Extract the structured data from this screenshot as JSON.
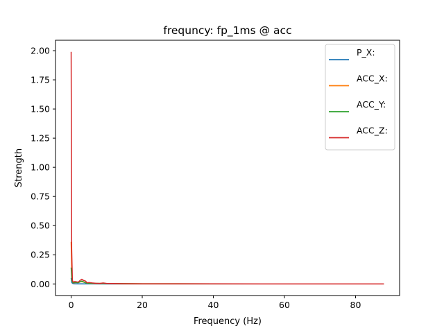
{
  "chart_data": {
    "type": "line",
    "title": "frequncy: fp_1ms @ acc",
    "xlabel": "Frequency (Hz)",
    "ylabel": "Strength",
    "xlim": [
      -4.4,
      92.4
    ],
    "ylim": [
      -0.0995,
      2.0895
    ],
    "xticks": [
      0,
      20,
      40,
      60,
      80
    ],
    "xtick_labels": [
      "0",
      "20",
      "40",
      "60",
      "80"
    ],
    "yticks": [
      0,
      0.25,
      0.5,
      0.75,
      1.0,
      1.25,
      1.5,
      1.75,
      2.0
    ],
    "ytick_labels": [
      "0.00",
      "0.25",
      "0.50",
      "0.75",
      "1.00",
      "1.25",
      "1.50",
      "1.75",
      "2.00"
    ],
    "grid": false,
    "legend_position": "top-right",
    "series": [
      {
        "name": "P_X:",
        "color": "#1f77b4",
        "x": [
          0,
          0.2,
          0.5,
          1,
          2,
          3,
          5,
          10,
          20,
          40,
          60,
          80,
          88
        ],
        "y": [
          0.05,
          0.01,
          0.003,
          0.002,
          0.001,
          0.001,
          0.001,
          0.0,
          0.0,
          0.0,
          0.0,
          0.0,
          0.0
        ]
      },
      {
        "name": "ACC_X:",
        "color": "#ff7f0e",
        "x": [
          0,
          0.2,
          0.5,
          1,
          2,
          3,
          4,
          5,
          10,
          20,
          40,
          60,
          80,
          88
        ],
        "y": [
          0.36,
          0.05,
          0.01,
          0.01,
          0.015,
          0.02,
          0.01,
          0.005,
          0.003,
          0.001,
          0.0,
          0.0,
          0.0,
          0.0
        ]
      },
      {
        "name": "ACC_Y:",
        "color": "#2ca02c",
        "x": [
          0,
          0.2,
          0.5,
          1,
          2,
          3,
          4,
          5,
          10,
          20,
          40,
          60,
          80,
          88
        ],
        "y": [
          0.14,
          0.03,
          0.01,
          0.012,
          0.01,
          0.025,
          0.01,
          0.005,
          0.003,
          0.001,
          0.0,
          0.0,
          0.0,
          0.0
        ]
      },
      {
        "name": "ACC_Z:",
        "color": "#d62728",
        "x": [
          0,
          0.15,
          0.35,
          0.6,
          1,
          1.5,
          2,
          2.5,
          3,
          3.5,
          4,
          4.5,
          5,
          6,
          7,
          8,
          9,
          10,
          15,
          20,
          40,
          60,
          80,
          88
        ],
        "y": [
          1.99,
          0.3,
          0.03,
          0.015,
          0.02,
          0.018,
          0.015,
          0.03,
          0.04,
          0.03,
          0.025,
          0.01,
          0.012,
          0.008,
          0.005,
          0.004,
          0.008,
          0.004,
          0.002,
          0.001,
          0.001,
          0.0,
          0.0,
          0.0
        ]
      }
    ]
  }
}
